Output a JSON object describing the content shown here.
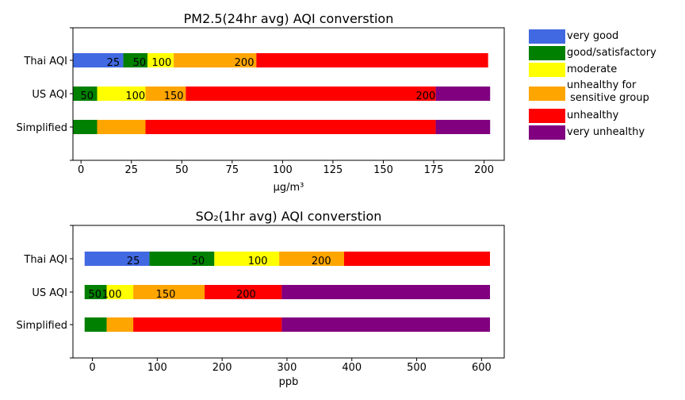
{
  "legend": {
    "items": [
      {
        "label": "very good",
        "color": "#4169e1"
      },
      {
        "label": "good/satisfactory",
        "color": "#008000"
      },
      {
        "label": "moderate",
        "color": "#ffff00"
      },
      {
        "label": "unhealthy for\n sensitive group",
        "color": "#ffa500"
      },
      {
        "label": "unhealthy",
        "color": "#ff0000"
      },
      {
        "label": "very unhealthy",
        "color": "#800080"
      }
    ]
  },
  "chart_data": [
    {
      "type": "bar",
      "orientation": "horizontal-stacked",
      "title": "PM2.5(24hr avg) AQI converstion",
      "xlabel": "μg/m³",
      "xlim": [
        -4,
        210
      ],
      "xticks": [
        "0",
        "25",
        "50",
        "75",
        "100",
        "125",
        "150",
        "175",
        "200"
      ],
      "rows": [
        {
          "label": "Simplified",
          "segments": [
            {
              "category": "good/satisfactory",
              "from": -4,
              "to": 8
            },
            {
              "category": "unhealthy for\n sensitive group",
              "from": 8,
              "to": 32
            },
            {
              "category": "unhealthy",
              "from": 32,
              "to": 176
            },
            {
              "category": "very unhealthy",
              "from": 176,
              "to": 203
            }
          ],
          "breakpoints": []
        },
        {
          "label": "US AQI",
          "segments": [
            {
              "category": "good/satisfactory",
              "from": -4,
              "to": 8
            },
            {
              "category": "moderate",
              "from": 8,
              "to": 32
            },
            {
              "category": "unhealthy for\n sensitive group",
              "from": 32,
              "to": 52
            },
            {
              "category": "unhealthy",
              "from": 52,
              "to": 176
            },
            {
              "category": "very unhealthy",
              "from": 176,
              "to": 203
            }
          ],
          "breakpoints": [
            {
              "label": "50",
              "x": 3
            },
            {
              "label": "100",
              "x": 27
            },
            {
              "label": "150",
              "x": 46
            },
            {
              "label": "200",
              "x": 171
            }
          ]
        },
        {
          "label": "Thai AQI",
          "segments": [
            {
              "category": "very good",
              "from": -4,
              "to": 21
            },
            {
              "category": "good/satisfactory",
              "from": 21,
              "to": 33
            },
            {
              "category": "moderate",
              "from": 33,
              "to": 46
            },
            {
              "category": "unhealthy for\n sensitive group",
              "from": 46,
              "to": 87
            },
            {
              "category": "unhealthy",
              "from": 87,
              "to": 202
            }
          ],
          "breakpoints": [
            {
              "label": "25",
              "x": 16
            },
            {
              "label": "50",
              "x": 29
            },
            {
              "label": "100",
              "x": 40
            },
            {
              "label": "200",
              "x": 81
            }
          ]
        }
      ]
    },
    {
      "type": "bar",
      "orientation": "horizontal-stacked",
      "title": "SO₂(1hr avg) AQI converstion",
      "xlabel": "ppb",
      "xlim": [
        -30,
        635
      ],
      "xticks": [
        "0",
        "100",
        "200",
        "300",
        "400",
        "500",
        "600"
      ],
      "rows": [
        {
          "label": "Simplified",
          "segments": [
            {
              "category": "good/satisfactory",
              "from": -12,
              "to": 22
            },
            {
              "category": "unhealthy for\n sensitive group",
              "from": 22,
              "to": 63
            },
            {
              "category": "unhealthy",
              "from": 63,
              "to": 292
            },
            {
              "category": "very unhealthy",
              "from": 292,
              "to": 613
            }
          ],
          "breakpoints": []
        },
        {
          "label": "US AQI",
          "segments": [
            {
              "category": "good/satisfactory",
              "from": -12,
              "to": 22
            },
            {
              "category": "moderate",
              "from": 22,
              "to": 63
            },
            {
              "category": "unhealthy for\n sensitive group",
              "from": 63,
              "to": 173
            },
            {
              "category": "unhealthy",
              "from": 173,
              "to": 292
            },
            {
              "category": "very unhealthy",
              "from": 292,
              "to": 613
            }
          ],
          "breakpoints": [
            {
              "label": "50",
              "x": 4
            },
            {
              "label": "100",
              "x": 30
            },
            {
              "label": "150",
              "x": 113
            },
            {
              "label": "200",
              "x": 237
            }
          ]
        },
        {
          "label": "Thai AQI",
          "segments": [
            {
              "category": "very good",
              "from": -12,
              "to": 88
            },
            {
              "category": "good/satisfactory",
              "from": 88,
              "to": 188
            },
            {
              "category": "moderate",
              "from": 188,
              "to": 288
            },
            {
              "category": "unhealthy for\n sensitive group",
              "from": 288,
              "to": 388
            },
            {
              "category": "unhealthy",
              "from": 388,
              "to": 613
            }
          ],
          "breakpoints": [
            {
              "label": "25",
              "x": 63
            },
            {
              "label": "50",
              "x": 163
            },
            {
              "label": "100",
              "x": 255
            },
            {
              "label": "200",
              "x": 353
            }
          ]
        }
      ]
    }
  ]
}
